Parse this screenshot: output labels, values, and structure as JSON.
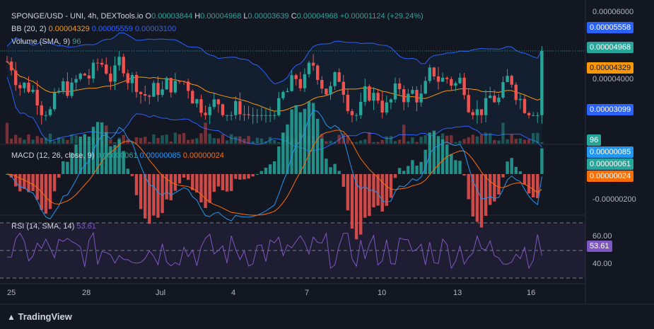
{
  "header": {
    "symbol": "SPONGE/USD - UNI, 4h, DEXTools.io",
    "o_label": "O",
    "o": "0.00003844",
    "h_label": "H",
    "h": "0.00004968",
    "l_label": "L",
    "l": "0.00003639",
    "c_label": "C",
    "c": "0.00004968",
    "change": "+0.00001124 (+29.24%)"
  },
  "bb": {
    "label": "BB (20, 2)",
    "basis": "0.00004329",
    "upper": "0.00005559",
    "lower": "0.00003100"
  },
  "volume": {
    "label": "Volume (SMA, 9)",
    "value": "96"
  },
  "macd": {
    "label": "MACD (12, 26, close, 9)",
    "hist": "0.00000061",
    "macd": "0.00000085",
    "signal": "0.00000024"
  },
  "rsi": {
    "label": "RSI (14, SMA, 14)",
    "value": "53.61"
  },
  "price_axis": {
    "ticks": [
      "0.00006000",
      "0.00004000"
    ],
    "tag_upper": "0.00005558",
    "tag_close": "0.00004968",
    "tag_basis": "0.00004329",
    "tag_lower": "0.00003099",
    "tag_volume": "96"
  },
  "macd_axis": {
    "ticks": [
      "-0.00000200"
    ],
    "tag_macd": "0.00000085",
    "tag_hist": "0.00000061",
    "tag_signal": "0.00000024"
  },
  "rsi_axis": {
    "ticks": [
      "60.00",
      "40.00"
    ],
    "tag_rsi": "53.61"
  },
  "time_axis": [
    "25",
    "28",
    "Jul",
    "4",
    "7",
    "10",
    "13",
    "16"
  ],
  "brand": "TradingView",
  "colors": {
    "up": "#26a69a",
    "down": "#ef5350",
    "bb_band": "#2962ff",
    "bb_basis": "#ff9800",
    "macd_line": "#2196f3",
    "signal_line": "#ff6d00",
    "rsi_line": "#7e57c2",
    "bg": "#131722"
  },
  "chart_data": {
    "type": "candlestick",
    "panes": [
      "price",
      "volume",
      "macd",
      "rsi"
    ],
    "price_ylim": [
      2.8e-05,
      6.2e-05
    ],
    "rsi_levels": [
      70,
      50,
      30
    ],
    "last_close": 4.968e-05
  }
}
